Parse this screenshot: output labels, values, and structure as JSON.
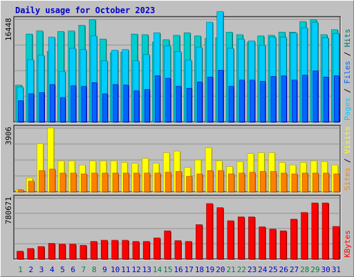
{
  "title": "Daily usage for October 2023",
  "colors": {
    "frame": "#c0c0c0",
    "panel": "#c0c0c0",
    "title": "#0000cc",
    "hits": "#00cccc",
    "hits_dark": "#007070",
    "files": "#0066ff",
    "pages": "#00ccff",
    "files_dark": "#0000aa",
    "visits": "#ffff00",
    "visits_dark": "#a0a000",
    "sites": "#ff8000",
    "sites_dark": "#a05000",
    "kbytes": "#ff0000",
    "kbytes_dark": "#800000",
    "weekend": "#008040",
    "weekday": "#0000cc"
  },
  "chart_data": {
    "type": "bar",
    "title": "Daily usage for October 2023",
    "days": [
      "1",
      "2",
      "3",
      "4",
      "5",
      "6",
      "7",
      "8",
      "9",
      "10",
      "11",
      "12",
      "13",
      "14",
      "15",
      "16",
      "17",
      "18",
      "19",
      "20",
      "21",
      "22",
      "23",
      "24",
      "25",
      "26",
      "27",
      "28",
      "29",
      "30",
      "31"
    ],
    "weekend_days": [
      "1",
      "7",
      "8",
      "14",
      "15",
      "21",
      "22",
      "28",
      "29"
    ],
    "panels": [
      {
        "id": "traffic",
        "y_max_label": "16448",
        "y_max": 16448,
        "legend": [
          "Pages",
          "Files",
          "Hits"
        ],
        "series": [
          {
            "name": "Hits",
            "values": [
              5900,
              14100,
              14600,
              11300,
              14500,
              14600,
              15500,
              16400,
              13300,
              11100,
              11200,
              14100,
              14000,
              12800,
              13200,
              13900,
              14300,
              13800,
              13400,
              13500,
              14400,
              14000,
              12800,
              13800,
              13900,
              14400,
              14400,
              16100,
              16400,
              14000,
              14800
            ]
          },
          {
            "name": "Files",
            "values": [
              3400,
              4500,
              4700,
              6000,
              3900,
              5800,
              5700,
              6300,
              4500,
              6000,
              5900,
              5000,
              5200,
              7400,
              7000,
              5700,
              5400,
              6400,
              7200,
              8300,
              5700,
              6700,
              6700,
              6500,
              7300,
              7400,
              6700,
              7500,
              8200,
              7200,
              7400
            ]
          },
          {
            "name": "Pages",
            "values": [
              5600,
              10000,
              10700,
              13600,
              8100,
              11800,
              11600,
              13800,
              9800,
              11500,
              11600,
              9800,
              10800,
              14300,
              12200,
              11300,
              9900,
              12000,
              16000,
              17700,
              11800,
              13300,
              13000,
              12300,
              13600,
              13600,
              14300,
              15100,
              16000,
              13500,
              14200
            ]
          }
        ]
      },
      {
        "id": "visitors",
        "y_max_label": "3906",
        "y_max": 3906,
        "legend": [
          "Sites",
          "Visits"
        ],
        "series": [
          {
            "name": "Visits",
            "values": [
              150,
              850,
              2950,
              3906,
              1900,
              1900,
              1650,
              1900,
              1900,
              1900,
              1800,
              1750,
              2050,
              1750,
              2400,
              2500,
              1500,
              1950,
              2700,
              1900,
              1550,
              1850,
              2350,
              2400,
              2400,
              1800,
              1650,
              1800,
              1900,
              1850,
              1650
            ]
          },
          {
            "name": "Sites",
            "values": [
              120,
              650,
              1300,
              1400,
              1150,
              1150,
              1100,
              1150,
              1150,
              1150,
              1150,
              1150,
              1150,
              1150,
              1200,
              1250,
              950,
              1100,
              1300,
              1300,
              1100,
              1150,
              1200,
              1250,
              1250,
              1150,
              1100,
              1150,
              1150,
              1150,
              1100
            ]
          }
        ]
      },
      {
        "id": "volume",
        "y_max_label": "780671",
        "y_max": 780671,
        "legend": [
          "KBytes"
        ],
        "series": [
          {
            "name": "KBytes",
            "values": [
              100000,
              135000,
              160000,
              200000,
              190000,
              190000,
              175000,
              225000,
              240000,
              240000,
              240000,
              225000,
              225000,
              270000,
              360000,
              235000,
              225000,
              440000,
              710000,
              658000,
              490000,
              540000,
              540000,
              412000,
              382000,
              360000,
              510000,
              596000,
              718000,
              718000,
              417000
            ]
          }
        ]
      }
    ]
  }
}
